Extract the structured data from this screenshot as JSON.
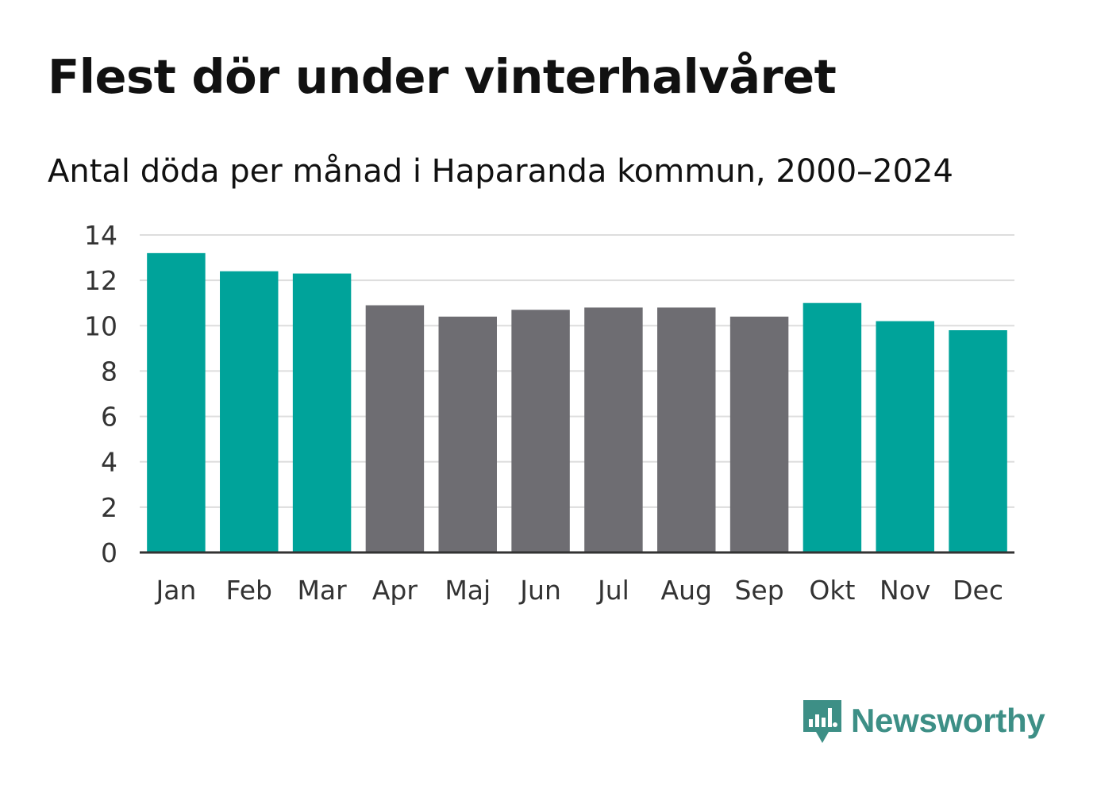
{
  "header": {
    "title": "Flest dör under vinterhalvåret",
    "subtitle": "Antal döda per månad i Haparanda kommun, 2000–2024"
  },
  "brand": {
    "name": "Newsworthy",
    "color": "#3d8f86",
    "icon": "bar-chart-speech-bubble-icon"
  },
  "colors": {
    "winter": "#00a39a",
    "summer": "#6e6d72",
    "grid": "#dddddd",
    "axis": "#333333",
    "label": "#333333"
  },
  "chart_data": {
    "type": "bar",
    "title": "Flest dör under vinterhalvåret",
    "subtitle": "Antal döda per månad i Haparanda kommun, 2000–2024",
    "xlabel": "",
    "ylabel": "",
    "ylim": [
      0,
      14
    ],
    "yticks": [
      0,
      2,
      4,
      6,
      8,
      10,
      12,
      14
    ],
    "grid": true,
    "categories": [
      "Jan",
      "Feb",
      "Mar",
      "Apr",
      "Maj",
      "Jun",
      "Jul",
      "Aug",
      "Sep",
      "Okt",
      "Nov",
      "Dec"
    ],
    "values": [
      13.2,
      12.4,
      12.3,
      10.9,
      10.4,
      10.7,
      10.8,
      10.8,
      10.4,
      11.0,
      10.2,
      9.8
    ],
    "groups": [
      "winter",
      "winter",
      "winter",
      "summer",
      "summer",
      "summer",
      "summer",
      "summer",
      "summer",
      "winter",
      "winter",
      "winter"
    ]
  }
}
